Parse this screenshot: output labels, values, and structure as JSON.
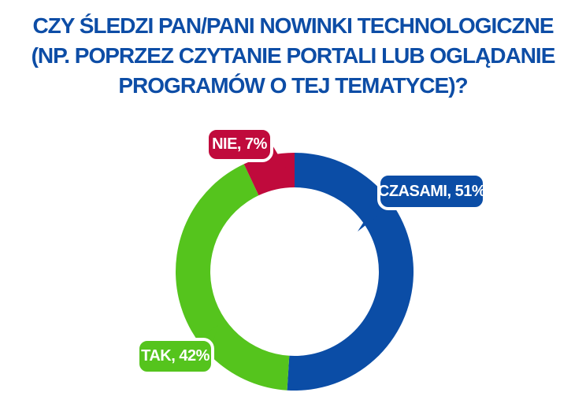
{
  "title": {
    "lines": [
      "CZY ŚLEDZI PAN/PANI NOWINKI TECHNOLOGICZNE",
      "(NP. POPRZEZ CZYTANIE PORTALI LUB OGLĄDANIE",
      "PROGRAMÓW O TEJ TEMATYCE)?"
    ],
    "color": "#0d4da6"
  },
  "chart_data": {
    "type": "pie",
    "subtype": "donut",
    "title": "CZY ŚLEDZI PAN/PANI NOWINKI TECHNOLOGICZNE (NP. POPRZEZ CZYTANIE PORTALI LUB OGLĄDANIE PROGRAMÓW O TEJ TEMATYCE)?",
    "categories": [
      "CZASAMI",
      "TAK",
      "NIE"
    ],
    "values": [
      51,
      42,
      7
    ],
    "unit": "%",
    "colors": [
      "#0b4da6",
      "#55c41d",
      "#c00a3c"
    ],
    "start_angle_deg": 0,
    "direction": "clockwise",
    "donut_hole_ratio": 0.71,
    "callout_labels": [
      "CZASAMI, 51%",
      "TAK, 42%",
      "NIE, 7%"
    ],
    "legend_position": "callout-labels",
    "background": "#ffffff"
  }
}
